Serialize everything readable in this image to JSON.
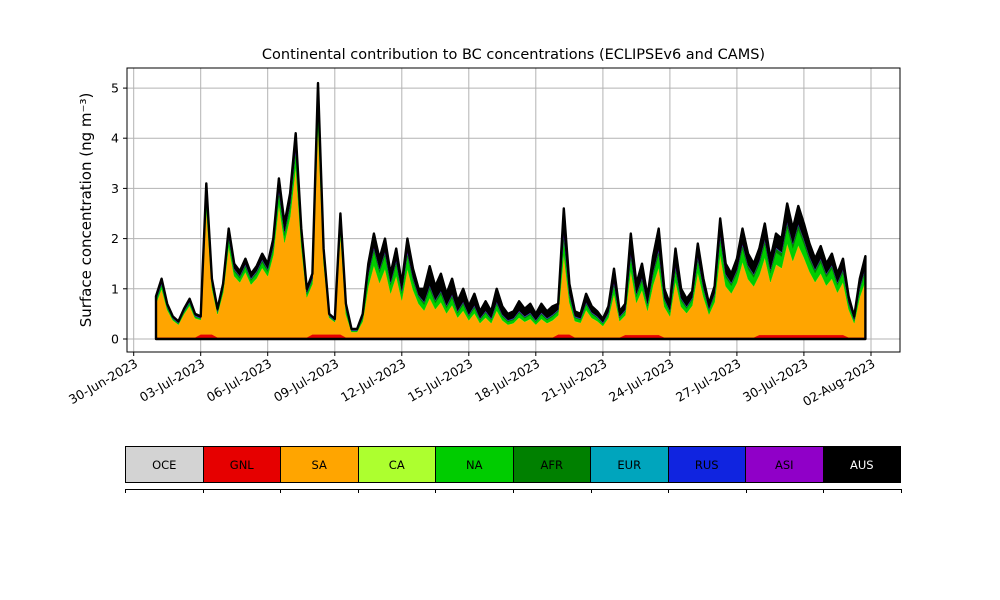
{
  "chart_data": {
    "type": "area",
    "stacked": true,
    "title": "Continental contribution to BC concentrations (ECLIPSEv6 and CAMS)",
    "ylabel": "Surface concentration (ng m⁻³)",
    "xlabel": "",
    "grid": true,
    "grid_color": "#b3b3b3",
    "ylim": [
      -0.26,
      5.4
    ],
    "xlim_days": [
      -0.3,
      34.3
    ],
    "y_ticks": [
      0,
      1,
      2,
      3,
      4,
      5
    ],
    "x_tick_days": [
      0,
      3,
      6,
      9,
      12,
      15,
      18,
      21,
      24,
      27,
      30,
      33
    ],
    "x_tick_labels": [
      "30-Jun-2023",
      "03-Jul-2023",
      "06-Jul-2023",
      "09-Jul-2023",
      "12-Jul-2023",
      "15-Jul-2023",
      "18-Jul-2023",
      "21-Jul-2023",
      "24-Jul-2023",
      "27-Jul-2023",
      "30-Jul-2023",
      "02-Aug-2023"
    ],
    "x_origin_date": "30-Jun-2023",
    "x_start_day": 1.0,
    "x_step_days": 0.25,
    "total": [
      0.85,
      1.2,
      0.7,
      0.45,
      0.35,
      0.6,
      0.8,
      0.5,
      0.45,
      3.1,
      1.2,
      0.6,
      1.1,
      2.2,
      1.5,
      1.35,
      1.6,
      1.3,
      1.45,
      1.7,
      1.5,
      2.0,
      3.2,
      2.3,
      2.9,
      4.1,
      2.2,
      1.0,
      1.3,
      5.1,
      1.8,
      0.5,
      0.4,
      2.5,
      0.7,
      0.2,
      0.2,
      0.5,
      1.5,
      2.1,
      1.6,
      2.0,
      1.3,
      1.8,
      1.1,
      2.0,
      1.4,
      1.0,
      1.0,
      1.45,
      1.05,
      1.3,
      0.9,
      1.2,
      0.75,
      1.0,
      0.65,
      0.9,
      0.55,
      0.75,
      0.55,
      1.0,
      0.65,
      0.5,
      0.55,
      0.75,
      0.6,
      0.7,
      0.5,
      0.7,
      0.55,
      0.65,
      0.7,
      2.6,
      1.1,
      0.55,
      0.5,
      0.9,
      0.65,
      0.55,
      0.4,
      0.65,
      1.4,
      0.55,
      0.7,
      2.1,
      1.1,
      1.5,
      0.85,
      1.65,
      2.2,
      1.0,
      0.7,
      1.8,
      1.0,
      0.8,
      0.95,
      1.9,
      1.2,
      0.7,
      1.05,
      2.4,
      1.5,
      1.3,
      1.6,
      2.2,
      1.7,
      1.5,
      1.8,
      2.3,
      1.6,
      2.1,
      2.0,
      2.7,
      2.2,
      2.65,
      2.3,
      1.9,
      1.6,
      1.85,
      1.5,
      1.7,
      1.3,
      1.6,
      0.85,
      0.45,
      1.2,
      1.65
    ],
    "stack_order": [
      "OCE",
      "GNL",
      "SA",
      "CA",
      "NA",
      "AFR",
      "EUR",
      "RUS",
      "ASI",
      "AUS"
    ],
    "flat_series": {
      "OCE": 0.01,
      "CA": 0.005,
      "EUR": 0.005,
      "RUS": 0.005,
      "ASI": 0.005
    },
    "gnl_series": {
      "base": 0.02,
      "bumps": [
        {
          "from": 2.8,
          "to": 3.6,
          "value": 0.08
        },
        {
          "from": 7.8,
          "to": 9.4,
          "value": 0.08
        },
        {
          "from": 18.9,
          "to": 19.7,
          "value": 0.08
        },
        {
          "from": 22.0,
          "to": 23.6,
          "value": 0.07
        },
        {
          "from": 27.8,
          "to": 31.8,
          "value": 0.07
        }
      ]
    },
    "composition": [
      {
        "from": 0,
        "to": 9.5,
        "SA": 0.84,
        "NA": 0.06,
        "AFR": 0.03,
        "AUS": 0.07
      },
      {
        "from": 9.5,
        "to": 13,
        "SA": 0.7,
        "NA": 0.13,
        "AFR": 0.04,
        "AUS": 0.13
      },
      {
        "from": 13,
        "to": 19,
        "SA": 0.56,
        "NA": 0.12,
        "AFR": 0.05,
        "AUS": 0.27
      },
      {
        "from": 19,
        "to": 25,
        "SA": 0.64,
        "NA": 0.12,
        "AFR": 0.045,
        "AUS": 0.195
      },
      {
        "from": 25,
        "to": 34,
        "SA": 0.7,
        "NA": 0.12,
        "AFR": 0.04,
        "AUS": 0.14
      }
    ],
    "outline_color": "#000000",
    "outline_width": 2.4
  },
  "legend": {
    "items": [
      {
        "label": "OCE",
        "color": "#d3d3d3",
        "text_color": "#000000"
      },
      {
        "label": "GNL",
        "color": "#e60000",
        "text_color": "#000000"
      },
      {
        "label": "SA",
        "color": "#ffa500",
        "text_color": "#000000"
      },
      {
        "label": "CA",
        "color": "#adff2f",
        "text_color": "#000000"
      },
      {
        "label": "NA",
        "color": "#00cc00",
        "text_color": "#000000"
      },
      {
        "label": "AFR",
        "color": "#008000",
        "text_color": "#000000"
      },
      {
        "label": "EUR",
        "color": "#00a5bd",
        "text_color": "#000000"
      },
      {
        "label": "RUS",
        "color": "#1024e0",
        "text_color": "#000000"
      },
      {
        "label": "ASI",
        "color": "#9000c8",
        "text_color": "#000000"
      },
      {
        "label": "AUS",
        "color": "#000000",
        "text_color": "#ffffff"
      }
    ]
  }
}
